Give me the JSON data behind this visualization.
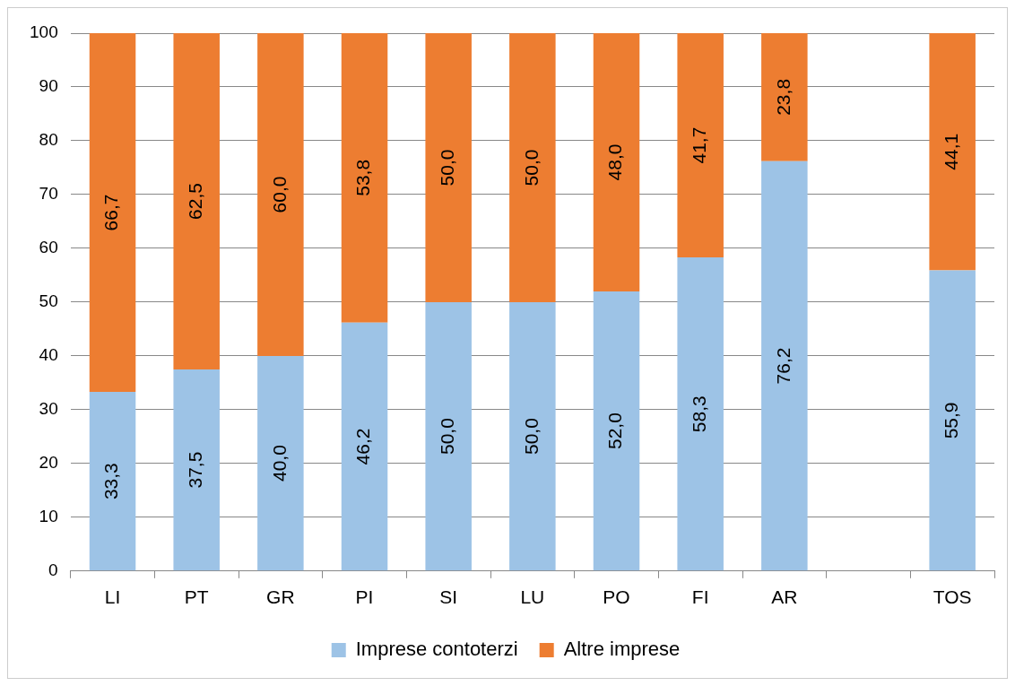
{
  "chart_data": {
    "type": "bar",
    "stacked": true,
    "categories": [
      "LI",
      "PT",
      "GR",
      "PI",
      "SI",
      "LU",
      "PO",
      "FI",
      "AR",
      null,
      "TOS"
    ],
    "series": [
      {
        "name": "Imprese contoterzi",
        "color": "#9dc3e6",
        "values": [
          33.3,
          37.5,
          40.0,
          46.2,
          50.0,
          50.0,
          52.0,
          58.3,
          76.2,
          null,
          55.9
        ],
        "value_labels": [
          "33,3",
          "37,5",
          "40,0",
          "46,2",
          "50,0",
          "50,0",
          "52,0",
          "58,3",
          "76,2",
          null,
          "55,9"
        ]
      },
      {
        "name": "Altre imprese",
        "color": "#ed7d31",
        "values": [
          66.7,
          62.5,
          60.0,
          53.8,
          50.0,
          50.0,
          48.0,
          41.7,
          23.8,
          null,
          44.1
        ],
        "value_labels": [
          "66,7",
          "62,5",
          "60,0",
          "53,8",
          "50,0",
          "50,0",
          "48,0",
          "41,7",
          "23,8",
          null,
          "44,1"
        ]
      }
    ],
    "ylim": [
      0,
      100
    ],
    "yticks": [
      0,
      10,
      20,
      30,
      40,
      50,
      60,
      70,
      80,
      90,
      100
    ],
    "grid": "y",
    "legend": "bottom"
  }
}
